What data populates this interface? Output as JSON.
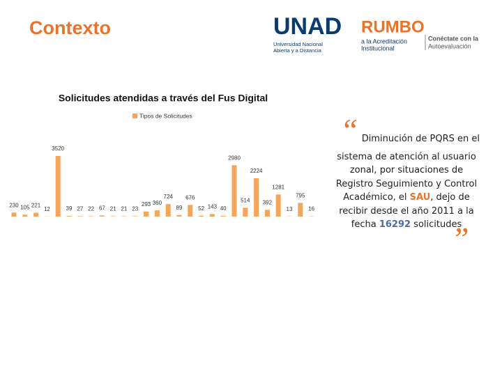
{
  "header": {
    "title": "Contexto"
  },
  "logos": {
    "unad": "UNAD",
    "unad_line1": "Universidad Nacional",
    "unad_line2": "Abierta y a Distancia",
    "rumbo": "RUMBO",
    "rumbo_line1": "a la Acreditación",
    "rumbo_line2": "Institucional",
    "conectate_line1": "Conéctate con la",
    "conectate_line2": "Autoevaluación"
  },
  "chart_data": {
    "type": "bar",
    "title": "Solicitudes atendidas a través del Fus Digital",
    "categories": [
      null,
      null,
      null,
      null,
      null,
      null,
      null,
      null,
      null,
      null,
      null,
      null,
      null,
      null,
      null,
      null,
      null,
      null,
      null,
      null,
      null,
      null,
      null,
      null,
      null,
      null,
      null,
      null
    ],
    "series": [
      {
        "name": "Tipos de Solicitudes",
        "color": "#f5a65b",
        "values": [
          230,
          105,
          221,
          12,
          3520,
          39,
          27,
          22,
          67,
          21,
          21,
          23,
          293,
          360,
          724,
          89,
          676,
          52,
          143,
          40,
          2980,
          514,
          2224,
          392,
          1281,
          13,
          795,
          16
        ]
      }
    ]
  },
  "quote": {
    "line1": "Diminución de PQRS en el",
    "part1": "sistema de atención al usuario zonal, por situaciones de Registro Seguimiento y Control Académico, el ",
    "highlight1": "SAU",
    "part2": ", dejo de recibir desde el año 2011 a la fecha ",
    "highlight2": "16292",
    "part3": " solicitudes"
  }
}
